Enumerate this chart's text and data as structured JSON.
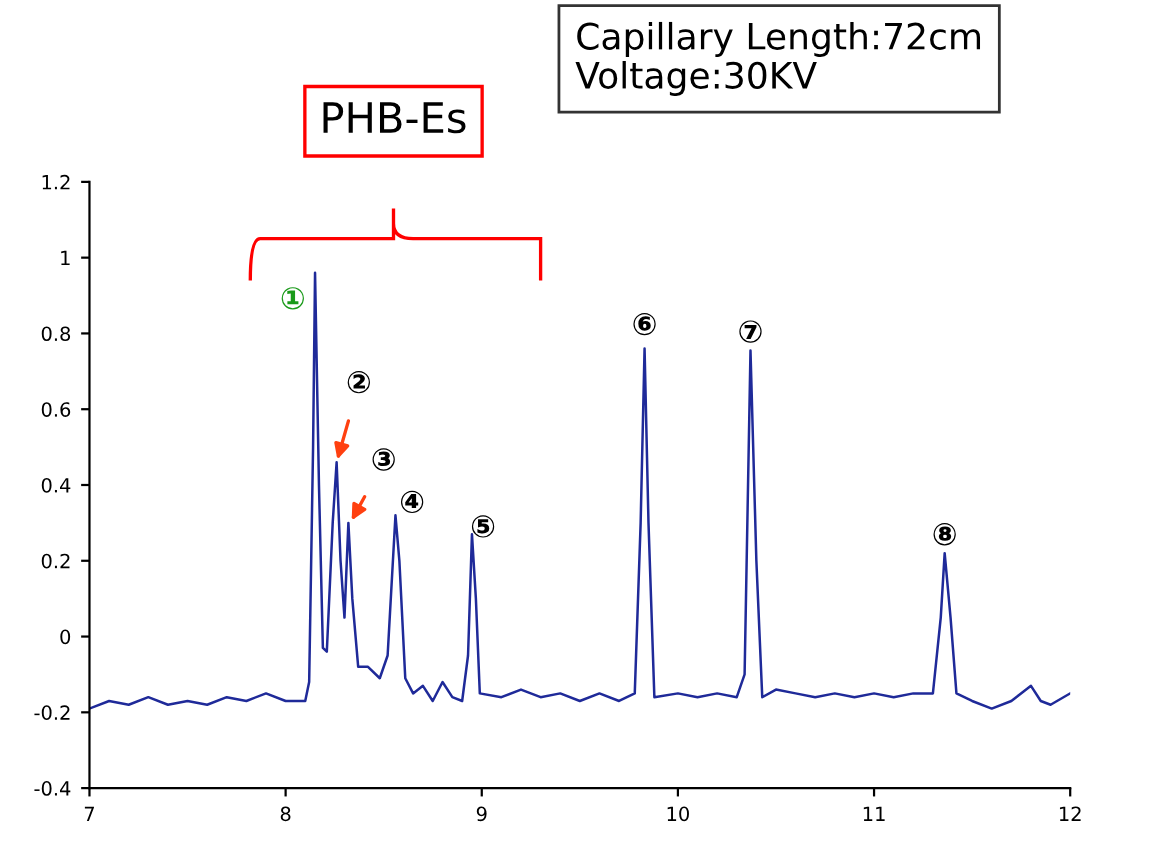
{
  "chart_data": {
    "type": "line",
    "x": [
      7.0,
      7.1,
      7.2,
      7.3,
      7.4,
      7.5,
      7.6,
      7.7,
      7.8,
      7.9,
      8.0,
      8.1,
      8.12,
      8.14,
      8.15,
      8.17,
      8.19,
      8.21,
      8.24,
      8.26,
      8.28,
      8.3,
      8.32,
      8.34,
      8.37,
      8.42,
      8.48,
      8.52,
      8.56,
      8.58,
      8.61,
      8.65,
      8.7,
      8.75,
      8.8,
      8.85,
      8.9,
      8.93,
      8.95,
      8.97,
      8.99,
      9.1,
      9.2,
      9.3,
      9.4,
      9.5,
      9.6,
      9.7,
      9.78,
      9.81,
      9.83,
      9.85,
      9.88,
      10.0,
      10.1,
      10.2,
      10.3,
      10.34,
      10.37,
      10.4,
      10.43,
      10.5,
      10.6,
      10.7,
      10.8,
      10.9,
      11.0,
      11.1,
      11.2,
      11.3,
      11.34,
      11.36,
      11.39,
      11.42,
      11.5,
      11.6,
      11.7,
      11.8,
      11.85,
      11.9,
      12.0
    ],
    "series": [
      {
        "color": "#1f2a99",
        "values": [
          -0.19,
          -0.17,
          -0.18,
          -0.16,
          -0.18,
          -0.17,
          -0.18,
          -0.16,
          -0.17,
          -0.15,
          -0.17,
          -0.17,
          -0.12,
          0.5,
          0.96,
          0.4,
          -0.03,
          -0.04,
          0.3,
          0.46,
          0.2,
          0.05,
          0.3,
          0.1,
          -0.08,
          -0.08,
          -0.11,
          -0.05,
          0.32,
          0.2,
          -0.11,
          -0.15,
          -0.13,
          -0.17,
          -0.12,
          -0.16,
          -0.17,
          -0.05,
          0.27,
          0.1,
          -0.15,
          -0.16,
          -0.14,
          -0.16,
          -0.15,
          -0.17,
          -0.15,
          -0.17,
          -0.15,
          0.3,
          0.76,
          0.3,
          -0.16,
          -0.15,
          -0.16,
          -0.15,
          -0.16,
          -0.1,
          0.755,
          0.2,
          -0.16,
          -0.14,
          -0.15,
          -0.16,
          -0.15,
          -0.16,
          -0.15,
          -0.16,
          -0.15,
          -0.15,
          0.05,
          0.22,
          0.05,
          -0.15,
          -0.17,
          -0.19,
          -0.17,
          -0.13,
          -0.17,
          -0.18,
          -0.15
        ]
      }
    ],
    "xlim": [
      7,
      12
    ],
    "xticks": [
      7,
      8,
      9,
      10,
      11,
      12
    ],
    "ylim": [
      -0.4,
      1.2
    ],
    "yticks": [
      -0.4,
      -0.2,
      0,
      0.2,
      0.4,
      0.6,
      0.8,
      1,
      1.2
    ],
    "grid": false,
    "legend": false,
    "annotations": [
      "Capillary Length:72cm\nVoltage:30KV",
      "PHB-Es",
      {
        "text": "①",
        "x": 8.15,
        "y": 0.96
      },
      {
        "text": "②",
        "x": 8.26,
        "y": 0.46
      },
      {
        "text": "③",
        "x": 8.33,
        "y": 0.3
      },
      {
        "text": "④",
        "x": 8.56,
        "y": 0.32
      },
      {
        "text": "⑤",
        "x": 8.95,
        "y": 0.27
      },
      {
        "text": "⑥",
        "x": 9.83,
        "y": 0.76
      },
      {
        "text": "⑦",
        "x": 10.37,
        "y": 0.755
      },
      {
        "text": "⑧",
        "x": 11.36,
        "y": 0.22
      }
    ]
  }
}
